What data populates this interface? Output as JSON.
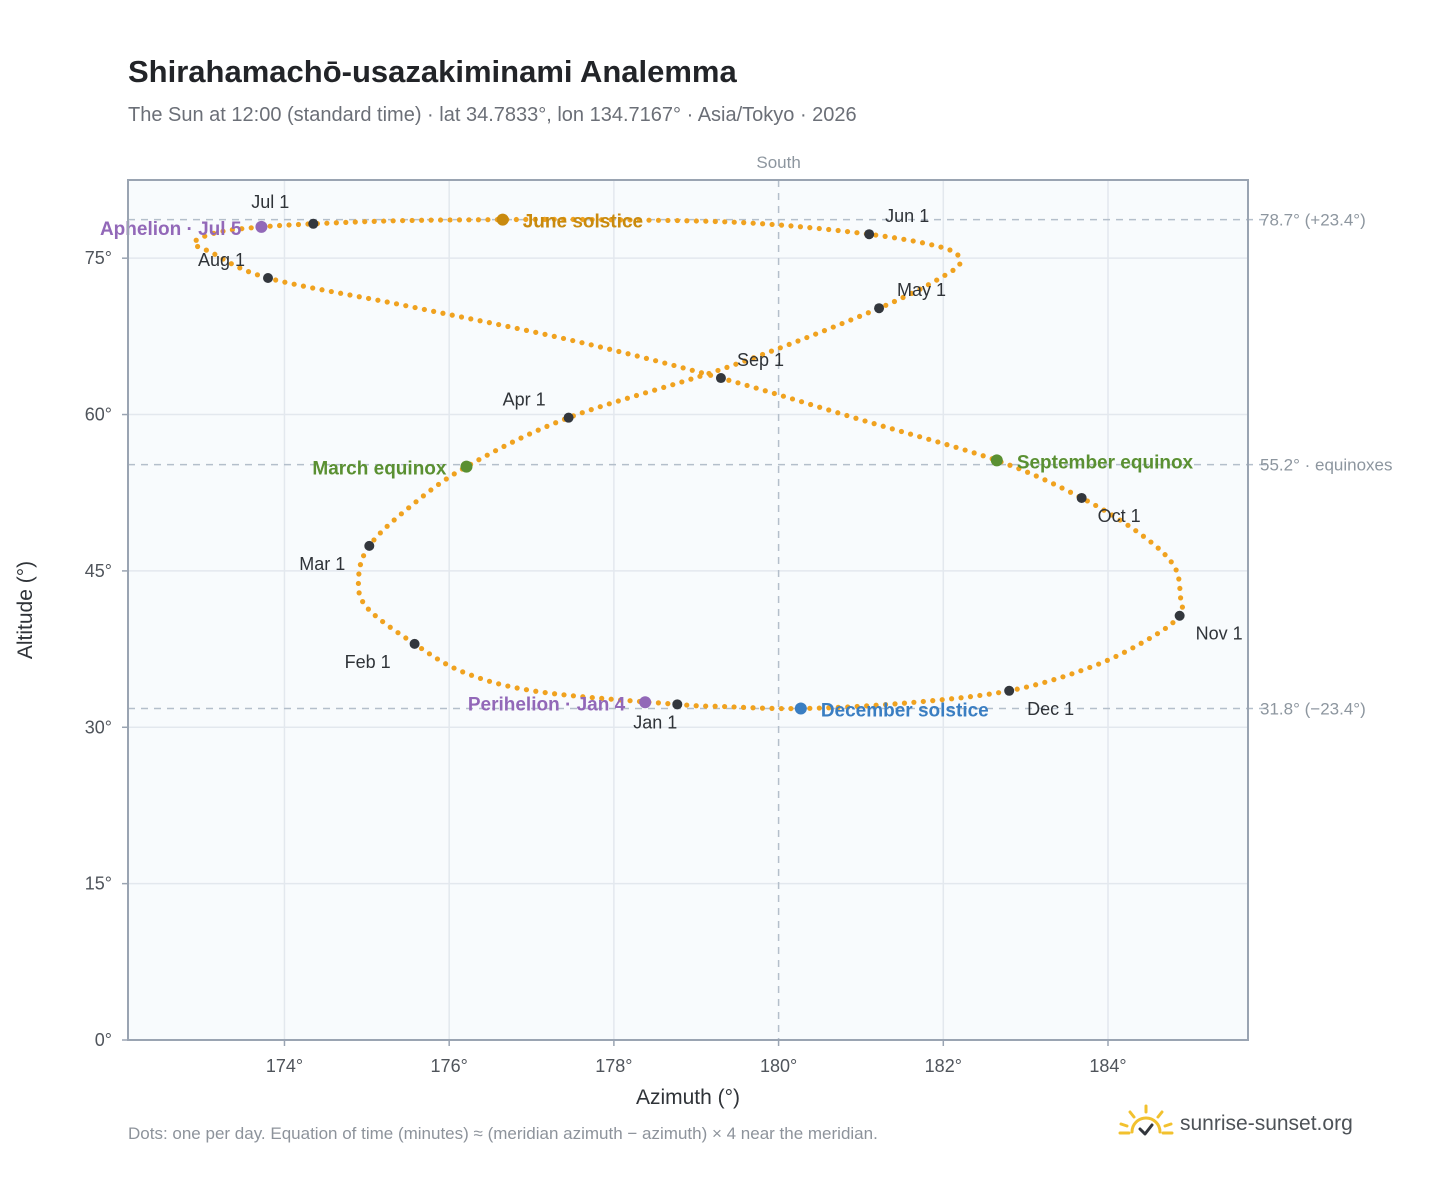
{
  "header": {
    "title": "Shirahamachō-usazakiminami Analemma",
    "subtitle": "The Sun at 12:00 (standard time) · lat 34.7833°, lon 134.7167° · Asia/Tokyo · 2026"
  },
  "footer": {
    "note": "Dots: one per day. Equation of time (minutes) ≈ (meridian azimuth − azimuth) × 4 near the meridian.",
    "brand": "sunrise-sunset.org",
    "brand_icon": "sun-check-logo-icon"
  },
  "colors": {
    "path": "#f0a21f",
    "month_dot": "#33373d",
    "solstice_june": "#c98a0e",
    "solstice_december": "#3a7ec2",
    "equinox": "#5a9032",
    "apsis": "#9268b8",
    "reference_line": "#b4bfcb",
    "grid": "#e3e8ee",
    "plot_bg": "#f8fbfd",
    "axis": "#9aa4b2"
  },
  "chart_data": {
    "type": "scatter",
    "xlabel": "Azimuth (°)",
    "ylabel": "Altitude (°)",
    "xlim": [
      172.1,
      185.7
    ],
    "ylim": [
      0,
      82.5
    ],
    "x_ticks": [
      {
        "value": 174,
        "label": "174°"
      },
      {
        "value": 176,
        "label": "176°"
      },
      {
        "value": 178,
        "label": "178°"
      },
      {
        "value": 180,
        "label": "180°"
      },
      {
        "value": 182,
        "label": "182°"
      },
      {
        "value": 184,
        "label": "184°"
      }
    ],
    "y_ticks": [
      {
        "value": 0,
        "label": "0°"
      },
      {
        "value": 15,
        "label": "15°"
      },
      {
        "value": 30,
        "label": "30°"
      },
      {
        "value": 45,
        "label": "45°"
      },
      {
        "value": 60,
        "label": "60°"
      },
      {
        "value": 75,
        "label": "75°"
      }
    ],
    "grid": true,
    "meridian": {
      "azimuth": 180,
      "label": "South"
    },
    "reference_lines": [
      {
        "altitude": 78.7,
        "label": "78.7° (+23.4°)"
      },
      {
        "altitude": 55.2,
        "label": "55.2° · equinoxes"
      },
      {
        "altitude": 31.8,
        "label": "31.8° (−23.4°)"
      }
    ],
    "daily_path": [
      {
        "az": 178.77,
        "alt": 32.2
      },
      {
        "az": 177.1,
        "alt": 33.4
      },
      {
        "az": 176.2,
        "alt": 35.2
      },
      {
        "az": 175.58,
        "alt": 38.0
      },
      {
        "az": 175.0,
        "alt": 41.5
      },
      {
        "az": 174.9,
        "alt": 44.3
      },
      {
        "az": 175.03,
        "alt": 47.4
      },
      {
        "az": 175.5,
        "alt": 51.0
      },
      {
        "az": 176.21,
        "alt": 55.0
      },
      {
        "az": 177.45,
        "alt": 59.7
      },
      {
        "az": 179.4,
        "alt": 64.6
      },
      {
        "az": 181.22,
        "alt": 70.2
      },
      {
        "az": 182.05,
        "alt": 73.5
      },
      {
        "az": 182.2,
        "alt": 74.8
      },
      {
        "az": 182.0,
        "alt": 76.0
      },
      {
        "az": 181.1,
        "alt": 77.3
      },
      {
        "az": 179.6,
        "alt": 78.4
      },
      {
        "az": 177.8,
        "alt": 78.7
      },
      {
        "az": 176.65,
        "alt": 78.7
      },
      {
        "az": 175.4,
        "alt": 78.6
      },
      {
        "az": 174.35,
        "alt": 78.3
      },
      {
        "az": 173.72,
        "alt": 78.0
      },
      {
        "az": 173.2,
        "alt": 77.5
      },
      {
        "az": 172.9,
        "alt": 76.5
      },
      {
        "az": 173.1,
        "alt": 75.6
      },
      {
        "az": 173.8,
        "alt": 73.1
      },
      {
        "az": 175.5,
        "alt": 70.4
      },
      {
        "az": 177.5,
        "alt": 67.1
      },
      {
        "az": 179.3,
        "alt": 63.5
      },
      {
        "az": 181.0,
        "alt": 59.5
      },
      {
        "az": 182.65,
        "alt": 55.6
      },
      {
        "az": 183.68,
        "alt": 52.0
      },
      {
        "az": 184.4,
        "alt": 48.5
      },
      {
        "az": 184.8,
        "alt": 45.5
      },
      {
        "az": 184.88,
        "alt": 42.5
      },
      {
        "az": 184.87,
        "alt": 40.7
      },
      {
        "az": 184.5,
        "alt": 38.5
      },
      {
        "az": 183.8,
        "alt": 35.8
      },
      {
        "az": 182.8,
        "alt": 33.5
      },
      {
        "az": 181.5,
        "alt": 32.3
      },
      {
        "az": 180.27,
        "alt": 31.8
      },
      {
        "az": 179.3,
        "alt": 32.0
      },
      {
        "az": 178.77,
        "alt": 32.2
      }
    ],
    "month_markers": [
      {
        "label": "Jan 1",
        "az": 178.77,
        "alt": 32.2
      },
      {
        "label": "Feb 1",
        "az": 175.58,
        "alt": 38.0
      },
      {
        "label": "Mar 1",
        "az": 175.03,
        "alt": 47.4
      },
      {
        "label": "Apr 1",
        "az": 177.45,
        "alt": 59.7
      },
      {
        "label": "May 1",
        "az": 181.22,
        "alt": 70.2
      },
      {
        "label": "Jun 1",
        "az": 181.1,
        "alt": 77.3
      },
      {
        "label": "Jul 1",
        "az": 174.35,
        "alt": 78.3
      },
      {
        "label": "Aug 1",
        "az": 173.8,
        "alt": 73.1
      },
      {
        "label": "Sep 1",
        "az": 179.3,
        "alt": 63.5
      },
      {
        "label": "Oct 1",
        "az": 183.68,
        "alt": 52.0
      },
      {
        "label": "Nov 1",
        "az": 184.87,
        "alt": 40.7
      },
      {
        "label": "Dec 1",
        "az": 182.8,
        "alt": 33.5
      }
    ],
    "events": [
      {
        "label": "June solstice",
        "az": 176.65,
        "alt": 78.7,
        "kind": "solstice_june"
      },
      {
        "label": "December solstice",
        "az": 180.27,
        "alt": 31.8,
        "kind": "solstice_december"
      },
      {
        "label": "March equinox",
        "az": 176.21,
        "alt": 55.0,
        "kind": "equinox"
      },
      {
        "label": "September equinox",
        "az": 182.65,
        "alt": 55.6,
        "kind": "equinox"
      },
      {
        "label": "Aphelion · Jul 5",
        "az": 173.72,
        "alt": 78.0,
        "kind": "apsis"
      },
      {
        "label": "Perihelion · Jan 4",
        "az": 178.38,
        "alt": 32.4,
        "kind": "apsis"
      }
    ]
  }
}
